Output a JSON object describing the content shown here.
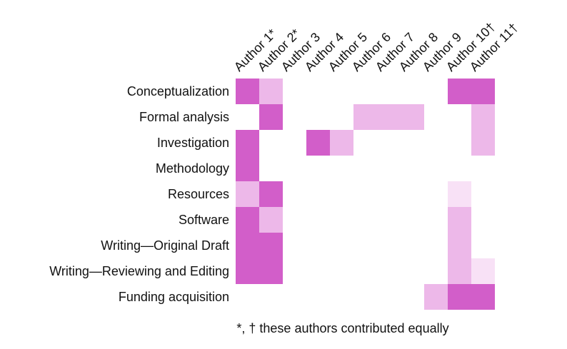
{
  "chart_data": {
    "type": "heatmap",
    "title": "",
    "columns": [
      "Author 1*",
      "Author 2*",
      "Author 3",
      "Author 4",
      "Author 5",
      "Author 6",
      "Author 7",
      "Author 8",
      "Author 9",
      "Author 10†",
      "Author 11†"
    ],
    "rows": [
      "Conceptualization",
      "Formal analysis",
      "Investigation",
      "Methodology",
      "Resources",
      "Software",
      "Writing—Original Draft",
      "Writing—Reviewing and Editing",
      "Funding acquisition"
    ],
    "values": [
      [
        3,
        2,
        0,
        0,
        0,
        0,
        0,
        0,
        0,
        3,
        3
      ],
      [
        0,
        3,
        0,
        0,
        0,
        2,
        2,
        2,
        0,
        0,
        2
      ],
      [
        3,
        0,
        0,
        3,
        2,
        0,
        0,
        0,
        0,
        0,
        2
      ],
      [
        3,
        0,
        0,
        0,
        0,
        0,
        0,
        0,
        0,
        0,
        0
      ],
      [
        2,
        3,
        0,
        0,
        0,
        0,
        0,
        0,
        0,
        1,
        0
      ],
      [
        3,
        2,
        0,
        0,
        0,
        0,
        0,
        0,
        0,
        2,
        0
      ],
      [
        3,
        3,
        0,
        0,
        0,
        0,
        0,
        0,
        0,
        2,
        0
      ],
      [
        3,
        3,
        0,
        0,
        0,
        0,
        0,
        0,
        0,
        2,
        1
      ],
      [
        0,
        0,
        0,
        0,
        0,
        0,
        0,
        0,
        2,
        3,
        3
      ]
    ],
    "palette": [
      "#ffffff",
      "#f8e1f6",
      "#edb8e9",
      "#d25ec9"
    ],
    "footnote": "*, † these authors contributed equally"
  }
}
